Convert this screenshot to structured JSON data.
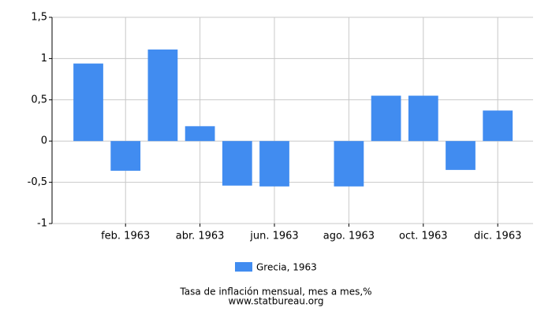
{
  "chart_data": {
    "type": "bar",
    "categories": [
      null,
      "feb. 1963",
      null,
      "abr. 1963",
      null,
      "jun. 1963",
      null,
      "ago. 1963",
      null,
      "oct. 1963",
      null,
      "dic. 1963"
    ],
    "series": [
      {
        "name": "Grecia, 1963",
        "color": "#418cf0",
        "values": [
          0.94,
          -0.36,
          1.11,
          0.18,
          -0.54,
          -0.55,
          0,
          -0.55,
          0.55,
          0.55,
          -0.35,
          0.37
        ]
      }
    ],
    "ylim": [
      -1,
      1.5
    ],
    "yticks": [
      -1,
      {
        "value": -0.5,
        "label": "-0,5"
      },
      0,
      {
        "value": 0.5,
        "label": "0,5"
      },
      1,
      {
        "value": 1.5,
        "label": "1,5"
      }
    ],
    "grid": true,
    "legend": "bottom",
    "xlabel": "Tasa de inflación mensual, mes a mes,%",
    "source": "www.statbureau.org"
  }
}
